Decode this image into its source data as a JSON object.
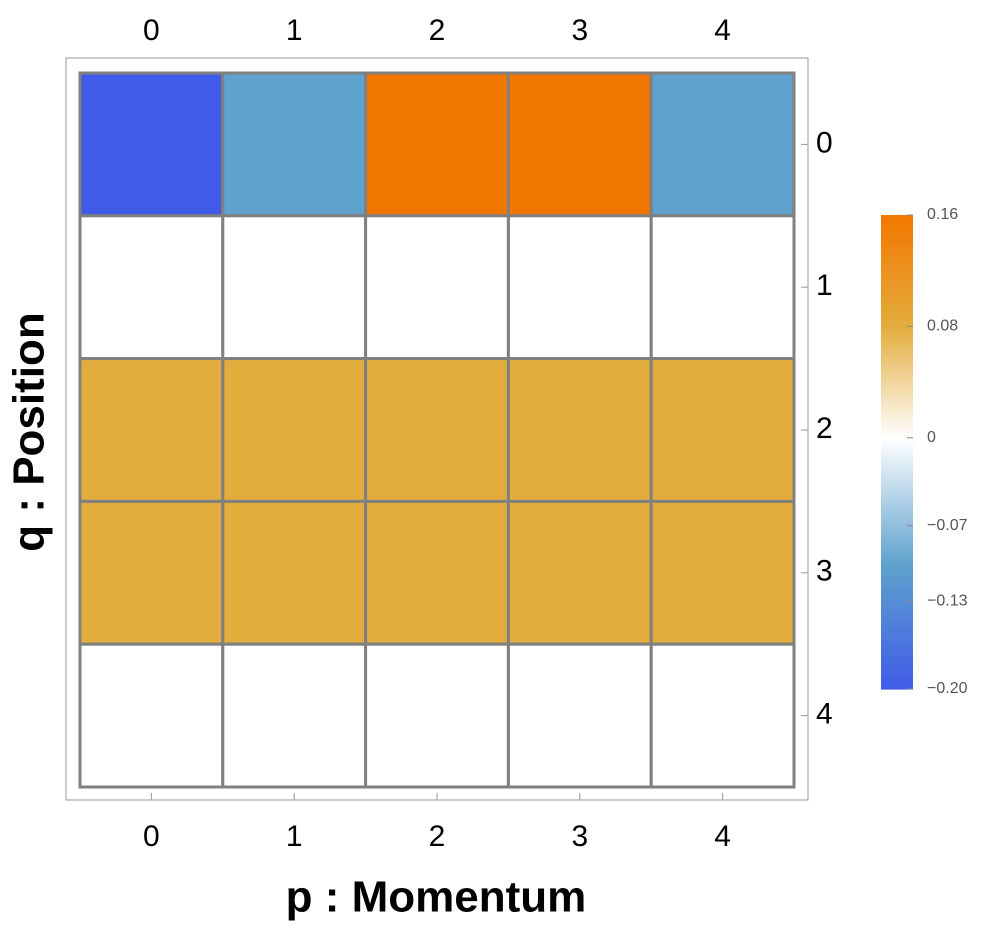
{
  "chart_data": {
    "type": "heatmap",
    "x_label": "p : Momentum",
    "y_label": "q : Position",
    "x_categories": [
      0,
      1,
      2,
      3,
      4
    ],
    "y_categories": [
      0,
      1,
      2,
      3,
      4
    ],
    "values": [
      [
        -0.2,
        -0.1,
        0.16,
        0.16,
        -0.1
      ],
      [
        0,
        0,
        0,
        0,
        0
      ],
      [
        0.08,
        0.08,
        0.08,
        0.08,
        0.08
      ],
      [
        0.08,
        0.08,
        0.08,
        0.08,
        0.08
      ],
      [
        0,
        0,
        0,
        0,
        0
      ]
    ],
    "colorbar_lim": [
      -0.2,
      0.16
    ],
    "colorbar_ticks": [
      {
        "value": -0.2,
        "label": "−0.20"
      },
      {
        "value": -0.13,
        "label": "−0.13"
      },
      {
        "value": -0.07,
        "label": "−0.07"
      },
      0,
      0.08,
      0.16
    ],
    "negative_colors": [
      "#ffffff",
      "#5fa2cd",
      "#405be8"
    ],
    "positive_colors": [
      "#ffffff",
      "#e2ad3d",
      "#f27700"
    ],
    "cell_border_color": "#808080"
  }
}
